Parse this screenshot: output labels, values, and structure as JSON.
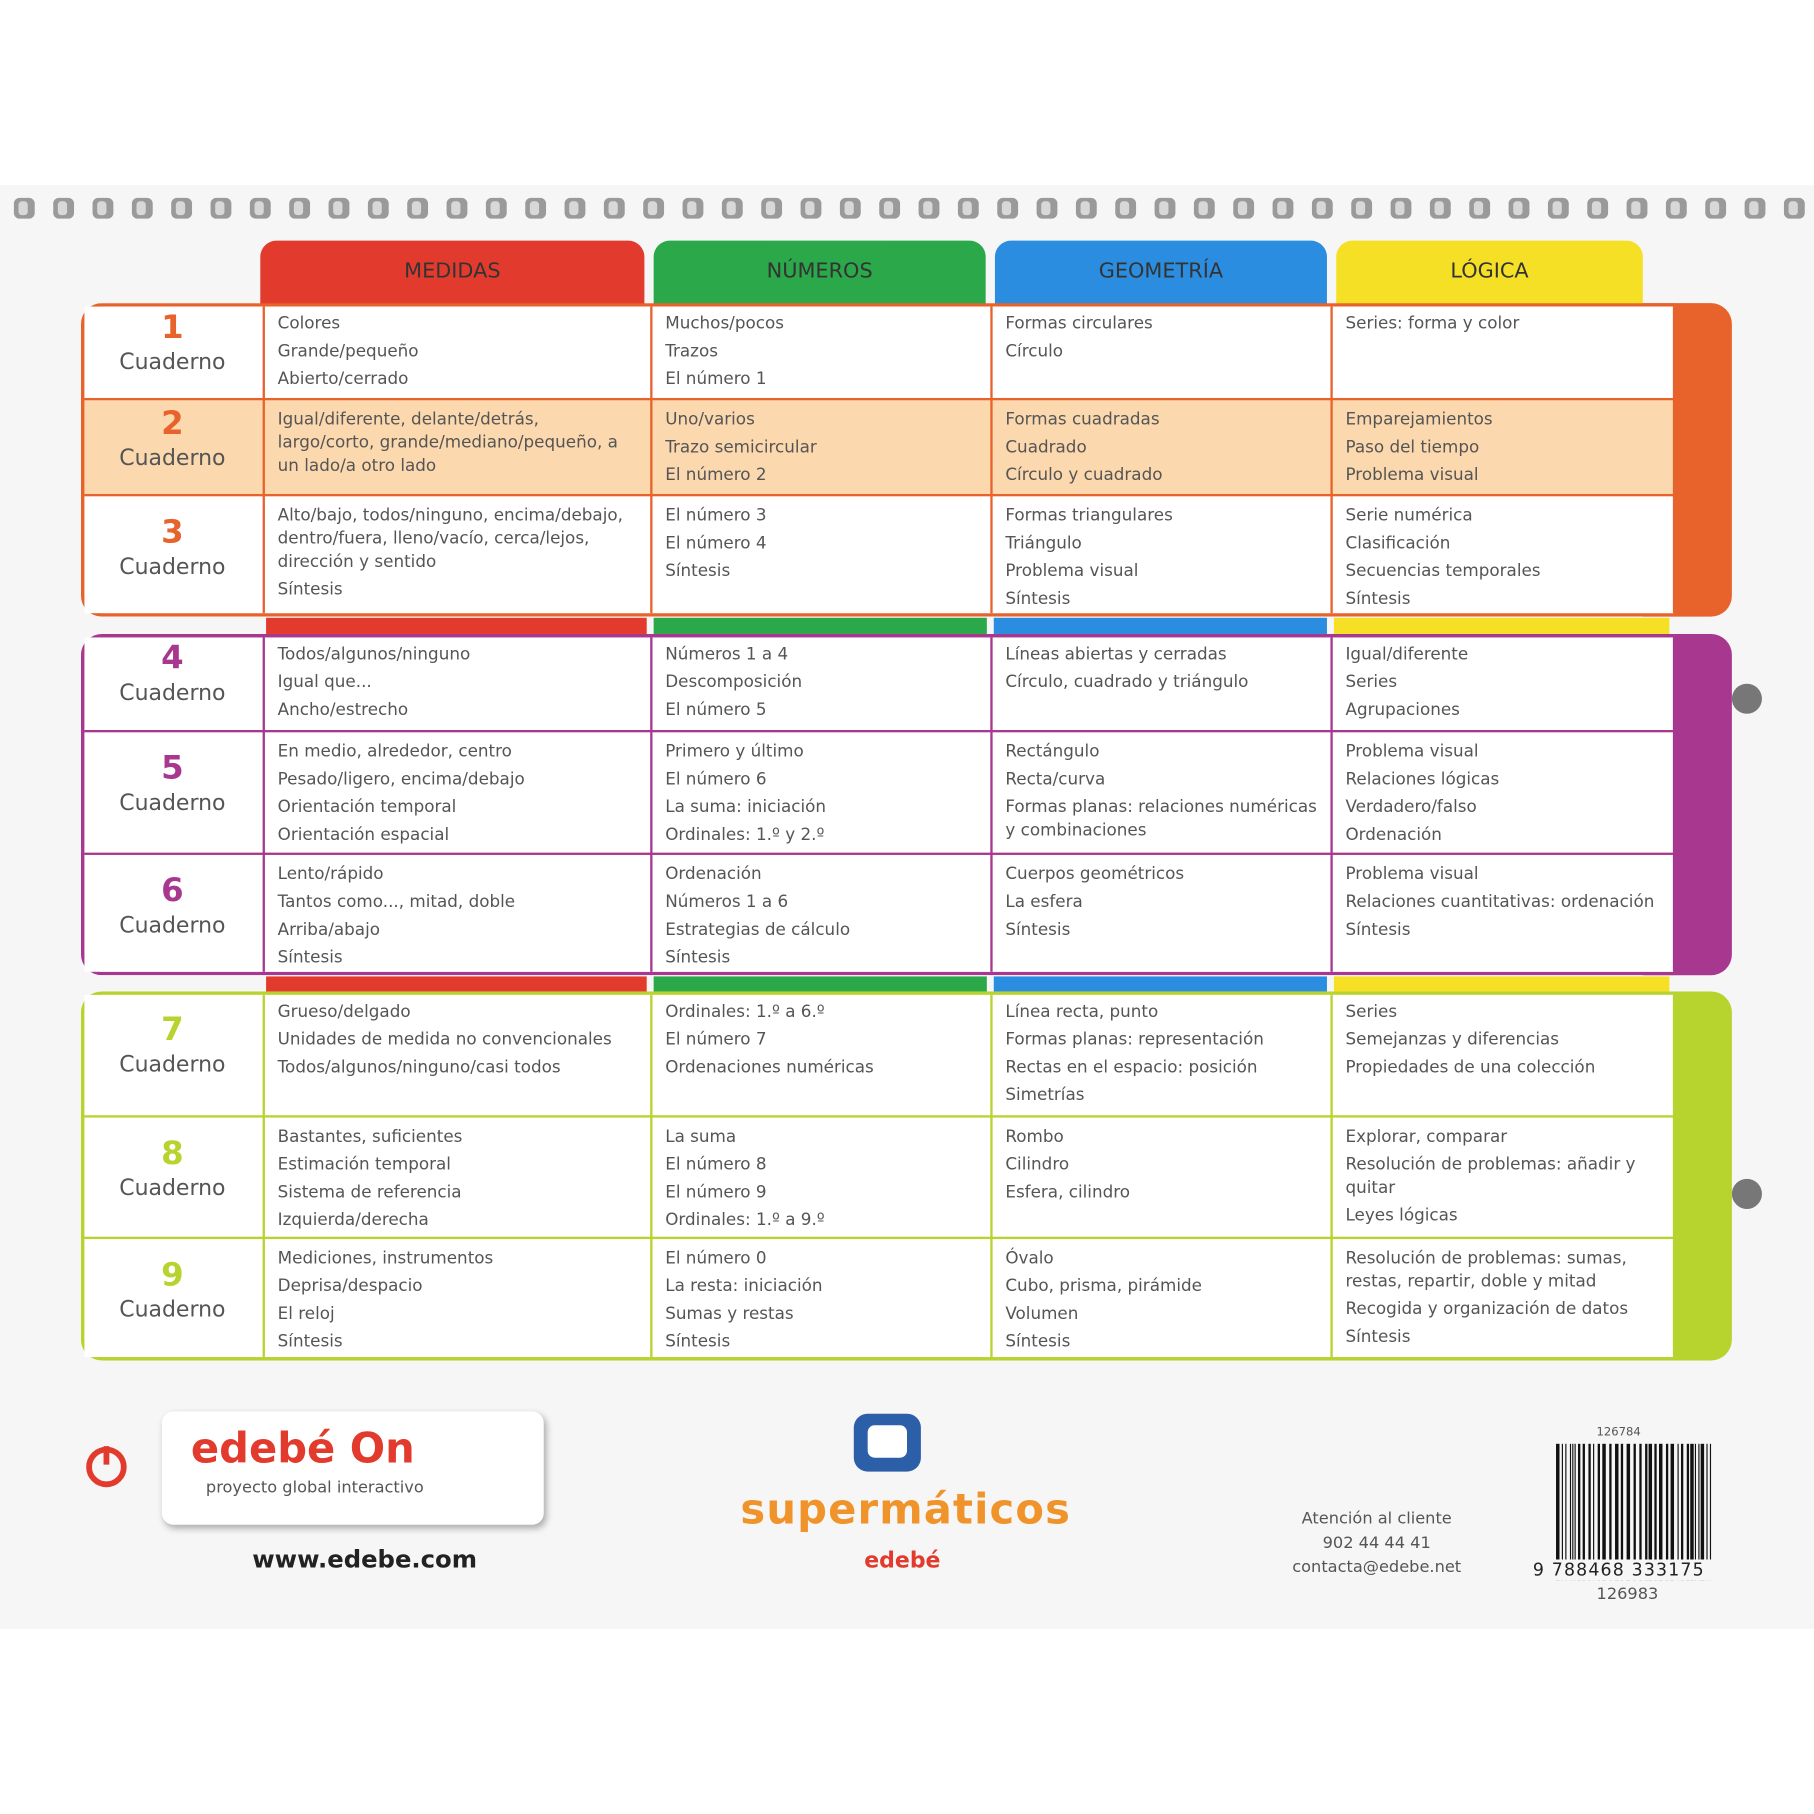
{
  "header": {
    "columns": [
      "MEDIDAS",
      "NÚMEROS",
      "GEOMETRÍA",
      "LÓGICA"
    ]
  },
  "groups": [
    {
      "rows": [
        {
          "number": "1",
          "label": "Cuaderno",
          "cells": [
            [
              "Colores",
              "Grande/pequeño",
              "Abierto/cerrado"
            ],
            [
              "Muchos/pocos",
              "Trazos",
              "El número 1"
            ],
            [
              "Formas circulares",
              "Círculo"
            ],
            [
              "Series: forma y color"
            ]
          ]
        },
        {
          "number": "2",
          "label": "Cuaderno",
          "cells": [
            [
              "Igual/diferente, delante/detrás, largo/corto, grande/mediano/pequeño, a un lado/a otro lado"
            ],
            [
              "Uno/varios",
              "Trazo semicircular",
              "El número 2"
            ],
            [
              "Formas cuadradas",
              "Cuadrado",
              "Círculo y cuadrado"
            ],
            [
              "Emparejamientos",
              "Paso del tiempo",
              "Problema visual"
            ]
          ]
        },
        {
          "number": "3",
          "label": "Cuaderno",
          "cells": [
            [
              "Alto/bajo, todos/ninguno, encima/debajo, dentro/fuera, lleno/vacío, cerca/lejos, dirección y sentido",
              "Síntesis"
            ],
            [
              "El número 3",
              "El número 4",
              "Síntesis"
            ],
            [
              "Formas triangulares",
              "Triángulo",
              "Problema visual",
              "Síntesis"
            ],
            [
              "Serie numérica",
              "Clasificación",
              "Secuencias temporales",
              "Síntesis"
            ]
          ]
        }
      ]
    },
    {
      "rows": [
        {
          "number": "4",
          "label": "Cuaderno",
          "cells": [
            [
              "Todos/algunos/ninguno",
              "Igual que...",
              "Ancho/estrecho"
            ],
            [
              "Números 1 a 4",
              "Descomposición",
              "El número 5"
            ],
            [
              "Líneas abiertas y cerradas",
              "Círculo, cuadrado y triángulo"
            ],
            [
              "Igual/diferente",
              "Series",
              "Agrupaciones"
            ]
          ]
        },
        {
          "number": "5",
          "label": "Cuaderno",
          "cells": [
            [
              "En medio, alrededor, centro",
              "Pesado/ligero, encima/debajo",
              "Orientación temporal",
              "Orientación espacial"
            ],
            [
              "Primero y último",
              "El número 6",
              "La suma: iniciación",
              "Ordinales: 1.º y 2.º"
            ],
            [
              "Rectángulo",
              "Recta/curva",
              "Formas planas: relaciones numéricas y combinaciones"
            ],
            [
              "Problema visual",
              "Relaciones lógicas",
              "Verdadero/falso",
              "Ordenación"
            ]
          ]
        },
        {
          "number": "6",
          "label": "Cuaderno",
          "cells": [
            [
              "Lento/rápido",
              "Tantos como..., mitad, doble",
              "Arriba/abajo",
              "Síntesis"
            ],
            [
              "Ordenación",
              "Números 1 a 6",
              "Estrategias de cálculo",
              "Síntesis"
            ],
            [
              "Cuerpos geométricos",
              "La esfera",
              "Síntesis"
            ],
            [
              "Problema visual",
              "Relaciones cuantitativas: ordenación",
              "Síntesis"
            ]
          ]
        }
      ]
    },
    {
      "rows": [
        {
          "number": "7",
          "label": "Cuaderno",
          "cells": [
            [
              "Grueso/delgado",
              "Unidades de medida no convencionales",
              "Todos/algunos/ninguno/casi todos"
            ],
            [
              "Ordinales: 1.º a 6.º",
              "El número 7",
              "Ordenaciones numéricas"
            ],
            [
              "Línea recta, punto",
              "Formas planas: representación",
              "Rectas en el espacio: posición",
              "Simetrías"
            ],
            [
              "Series",
              "Semejanzas y diferencias",
              "Propiedades de una colección"
            ]
          ]
        },
        {
          "number": "8",
          "label": "Cuaderno",
          "cells": [
            [
              "Bastantes, suficientes",
              "Estimación temporal",
              "Sistema de referencia",
              "Izquierda/derecha"
            ],
            [
              "La suma",
              "El número 8",
              "El número 9",
              "Ordinales: 1.º a 9.º"
            ],
            [
              "Rombo",
              "Cilindro",
              "Esfera, cilindro"
            ],
            [
              "Explorar, comparar",
              "Resolución de problemas: añadir y quitar",
              "Leyes lógicas"
            ]
          ]
        },
        {
          "number": "9",
          "label": "Cuaderno",
          "cells": [
            [
              "Mediciones, instrumentos",
              "Deprisa/despacio",
              "El reloj",
              "Síntesis"
            ],
            [
              "El número 0",
              "La resta: iniciación",
              "Sumas y restas",
              "Síntesis"
            ],
            [
              "Óvalo",
              "Cubo, prisma, pirámide",
              "Volumen",
              "Síntesis"
            ],
            [
              "Resolución de problemas: sumas, restas, repartir, doble y mitad",
              "Recogida y organización de datos",
              "Síntesis"
            ]
          ]
        }
      ]
    }
  ],
  "footer": {
    "brand": "edebé On",
    "tagline": "proyecto global interactivo",
    "url": "www.edebe.com",
    "series": "supermáticos",
    "publisher": "edebé",
    "contact": [
      "Atención al cliente",
      "902 44 44 41",
      "contacta@edebe.net"
    ],
    "code_top": "126784",
    "isbn": "9 788468 333175",
    "code_bottom": "126983"
  }
}
